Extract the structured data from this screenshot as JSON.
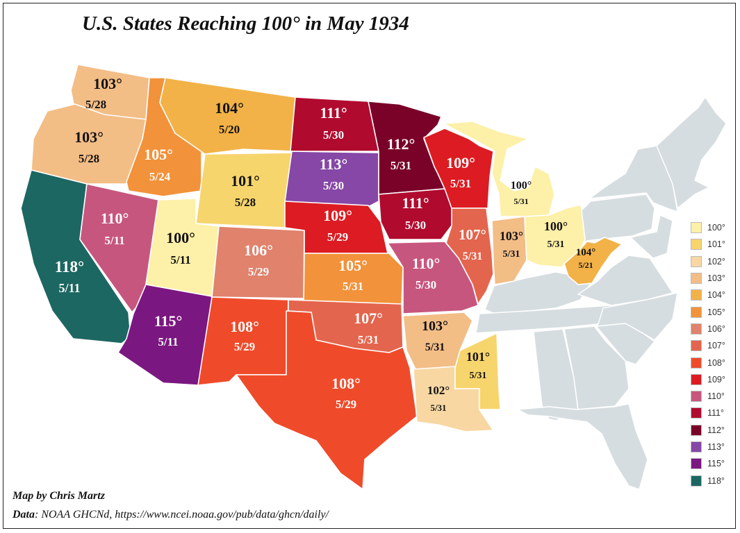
{
  "title": "U.S. States Reaching 100° in May 1934",
  "credit": {
    "author": "Map by Chris Martz",
    "data_label": "Data",
    "data_text": ": NOAA GHCNd, https://www.ncei.noaa.gov/pub/data/ghcn/daily/"
  },
  "colors": {
    "100": "#fdf0a8",
    "101": "#f7d56d",
    "102": "#f8d7a3",
    "103": "#f3bd86",
    "104": "#f2b247",
    "105": "#f2923a",
    "106": "#e0826c",
    "107": "#e4654d",
    "108": "#ef4b2a",
    "109": "#dc1c22",
    "110": "#c7567e",
    "111": "#b10a2f",
    "112": "#7a0228",
    "113": "#8647a6",
    "115": "#7b1780",
    "118": "#1c6762",
    "none": "#d6dde0"
  },
  "legend": [
    "100°",
    "101°",
    "102°",
    "103°",
    "104°",
    "105°",
    "106°",
    "107°",
    "108°",
    "109°",
    "110°",
    "111°",
    "112°",
    "113°",
    "115°",
    "118°"
  ],
  "legend_keys": [
    "100",
    "101",
    "102",
    "103",
    "104",
    "105",
    "106",
    "107",
    "108",
    "109",
    "110",
    "111",
    "112",
    "113",
    "115",
    "118"
  ],
  "states": [
    {
      "id": "WA",
      "temp": "103°",
      "date": "5/28",
      "key": "103"
    },
    {
      "id": "OR",
      "temp": "103°",
      "date": "5/28",
      "key": "103"
    },
    {
      "id": "CA",
      "temp": "118°",
      "date": "5/11",
      "key": "118"
    },
    {
      "id": "ID",
      "temp": "105°",
      "date": "5/24",
      "key": "105"
    },
    {
      "id": "NV",
      "temp": "110°",
      "date": "5/11",
      "key": "110"
    },
    {
      "id": "MT",
      "temp": "104°",
      "date": "5/20",
      "key": "104"
    },
    {
      "id": "WY",
      "temp": "101°",
      "date": "5/28",
      "key": "101"
    },
    {
      "id": "UT",
      "temp": "100°",
      "date": "5/11",
      "key": "100"
    },
    {
      "id": "AZ",
      "temp": "115°",
      "date": "5/11",
      "key": "115"
    },
    {
      "id": "CO",
      "temp": "106°",
      "date": "5/29",
      "key": "106"
    },
    {
      "id": "NM",
      "temp": "108°",
      "date": "5/29",
      "key": "108"
    },
    {
      "id": "ND",
      "temp": "111°",
      "date": "5/30",
      "key": "111"
    },
    {
      "id": "SD",
      "temp": "113°",
      "date": "5/30",
      "key": "113"
    },
    {
      "id": "NE",
      "temp": "109°",
      "date": "5/29",
      "key": "109"
    },
    {
      "id": "KS",
      "temp": "105°",
      "date": "5/31",
      "key": "105"
    },
    {
      "id": "OK",
      "temp": "107°",
      "date": "5/31",
      "key": "107"
    },
    {
      "id": "TX",
      "temp": "108°",
      "date": "5/29",
      "key": "108"
    },
    {
      "id": "MN",
      "temp": "112°",
      "date": "5/31",
      "key": "112"
    },
    {
      "id": "IA",
      "temp": "111°",
      "date": "5/30",
      "key": "111"
    },
    {
      "id": "MO",
      "temp": "110°",
      "date": "5/30",
      "key": "110"
    },
    {
      "id": "AR",
      "temp": "103°",
      "date": "5/31",
      "key": "103"
    },
    {
      "id": "LA",
      "temp": "102°",
      "date": "5/31",
      "key": "102"
    },
    {
      "id": "WI",
      "temp": "109°",
      "date": "5/31",
      "key": "109"
    },
    {
      "id": "IL",
      "temp": "107°",
      "date": "5/31",
      "key": "107"
    },
    {
      "id": "MS",
      "temp": "101°",
      "date": "5/31",
      "key": "101"
    },
    {
      "id": "MI",
      "temp": "100°",
      "date": "5/31",
      "key": "100"
    },
    {
      "id": "IN",
      "temp": "103°",
      "date": "5/31",
      "key": "103"
    },
    {
      "id": "OH",
      "temp": "100°",
      "date": "5/31",
      "key": "100"
    },
    {
      "id": "WV",
      "temp": "104°",
      "date": "5/21",
      "key": "104"
    }
  ]
}
